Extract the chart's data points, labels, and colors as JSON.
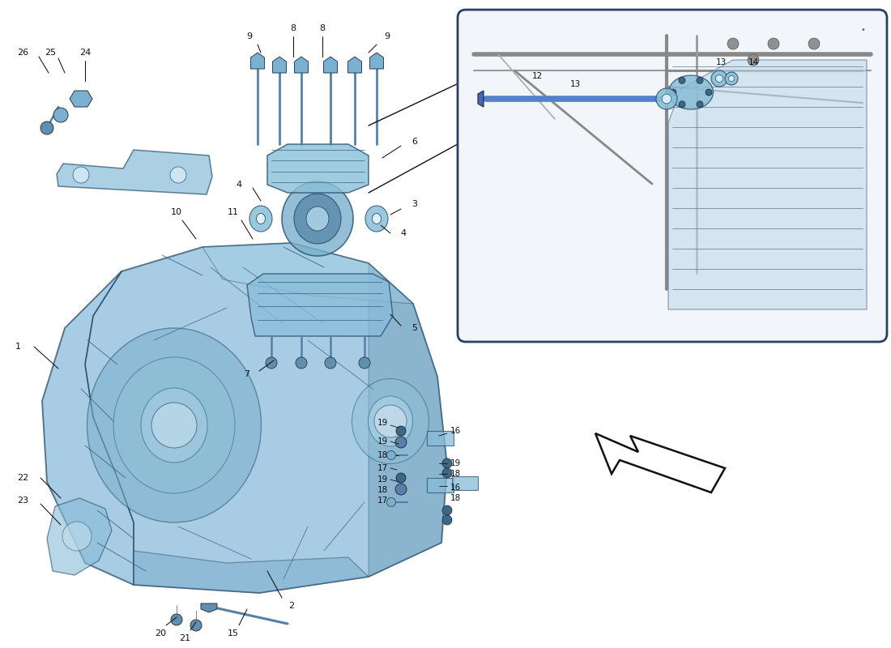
{
  "bg_color": "#ffffff",
  "gearbox_fill": "#8bbcdb",
  "gearbox_edge": "#2a5070",
  "gearbox_alpha": 0.75,
  "detail_fill": "#f8fafc",
  "detail_edge": "#444466",
  "line_color": "#111111",
  "blue_rod": "#5580cc",
  "mount_fill": "#7ab8d8",
  "bracket_fill": "#88bcd8",
  "arrow_fill": "#ffffff",
  "arrow_edge": "#111111",
  "callout_size": 8.0,
  "small_callout_size": 7.5
}
